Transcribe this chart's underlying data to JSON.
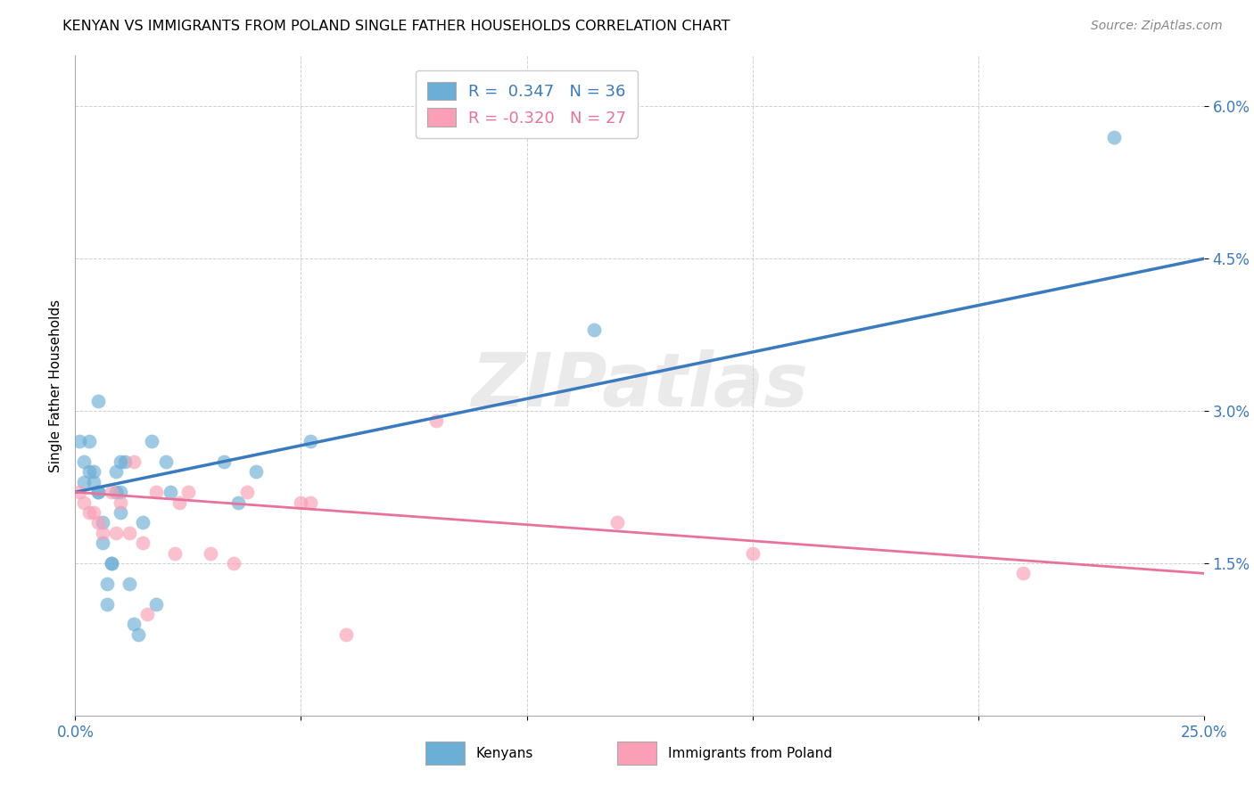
{
  "title": "KENYAN VS IMMIGRANTS FROM POLAND SINGLE FATHER HOUSEHOLDS CORRELATION CHART",
  "source": "Source: ZipAtlas.com",
  "ylabel": "Single Father Households",
  "xlim": [
    0.0,
    0.25
  ],
  "ylim": [
    0.0,
    0.065
  ],
  "xticks": [
    0.0,
    0.05,
    0.1,
    0.15,
    0.2,
    0.25
  ],
  "xtick_labels_show": [
    "0.0%",
    "",
    "",
    "",
    "",
    "25.0%"
  ],
  "yticks": [
    0.015,
    0.03,
    0.045,
    0.06
  ],
  "ytick_labels": [
    "1.5%",
    "3.0%",
    "4.5%",
    "6.0%"
  ],
  "blue_R": "0.347",
  "blue_N": "36",
  "pink_R": "-0.320",
  "pink_N": "27",
  "legend_label_blue": "Kenyans",
  "legend_label_pink": "Immigrants from Poland",
  "blue_color": "#6baed6",
  "pink_color": "#fa9fb5",
  "blue_line_color": "#3a7abf",
  "pink_line_color": "#e8729a",
  "tick_color": "#3a7abf",
  "watermark_text": "ZIPatlas",
  "blue_line_y0": 0.022,
  "blue_line_y1": 0.045,
  "pink_line_y0": 0.022,
  "pink_line_y1": 0.014,
  "blue_x": [
    0.001,
    0.002,
    0.002,
    0.003,
    0.003,
    0.004,
    0.004,
    0.005,
    0.005,
    0.005,
    0.006,
    0.006,
    0.007,
    0.007,
    0.008,
    0.008,
    0.009,
    0.009,
    0.01,
    0.01,
    0.01,
    0.011,
    0.012,
    0.013,
    0.014,
    0.015,
    0.017,
    0.018,
    0.02,
    0.021,
    0.033,
    0.036,
    0.04,
    0.052,
    0.115,
    0.23
  ],
  "blue_y": [
    0.027,
    0.025,
    0.023,
    0.027,
    0.024,
    0.024,
    0.023,
    0.022,
    0.031,
    0.022,
    0.019,
    0.017,
    0.013,
    0.011,
    0.015,
    0.015,
    0.024,
    0.022,
    0.025,
    0.022,
    0.02,
    0.025,
    0.013,
    0.009,
    0.008,
    0.019,
    0.027,
    0.011,
    0.025,
    0.022,
    0.025,
    0.021,
    0.024,
    0.027,
    0.038,
    0.057
  ],
  "pink_x": [
    0.001,
    0.002,
    0.003,
    0.004,
    0.005,
    0.006,
    0.008,
    0.009,
    0.01,
    0.012,
    0.013,
    0.015,
    0.016,
    0.018,
    0.022,
    0.023,
    0.025,
    0.03,
    0.035,
    0.038,
    0.05,
    0.052,
    0.06,
    0.08,
    0.12,
    0.15,
    0.21
  ],
  "pink_y": [
    0.022,
    0.021,
    0.02,
    0.02,
    0.019,
    0.018,
    0.022,
    0.018,
    0.021,
    0.018,
    0.025,
    0.017,
    0.01,
    0.022,
    0.016,
    0.021,
    0.022,
    0.016,
    0.015,
    0.022,
    0.021,
    0.021,
    0.008,
    0.029,
    0.019,
    0.016,
    0.014
  ]
}
